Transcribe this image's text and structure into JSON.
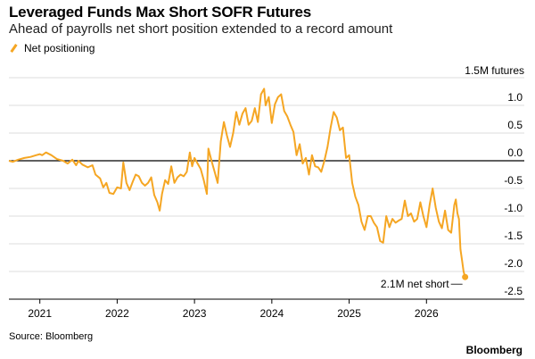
{
  "chart_data": {
    "type": "line",
    "title": "Leveraged Funds Max Short SOFR Futures",
    "subtitle": "Ahead of payrolls net short position extended to a record amount",
    "legend": [
      {
        "name": "Net positioning",
        "color": "#f5a623"
      }
    ],
    "unit_label": "1.5M futures",
    "ylim": [
      -2.5,
      1.5
    ],
    "yticks": [
      1.0,
      0.5,
      0.0,
      -0.5,
      -1.0,
      -1.5,
      -2.0,
      -2.5
    ],
    "ytick_labels": [
      "1.0",
      "0.5",
      "0.0",
      "-0.5",
      "-1.0",
      "-1.5",
      "-2.0",
      "-2.5"
    ],
    "xlim": [
      2020.6,
      2026.85
    ],
    "xticks": [
      2021,
      2022,
      2023,
      2024,
      2025,
      2026
    ],
    "xtick_labels": [
      "2021",
      "2022",
      "2023",
      "2024",
      "2025",
      "2026"
    ],
    "grid": true,
    "series": [
      {
        "name": "Net positioning",
        "color": "#f5a623",
        "x": [
          2020.6,
          2020.65,
          2020.72,
          2020.8,
          2020.88,
          2020.95,
          2021.0,
          2021.03,
          2021.08,
          2021.15,
          2021.22,
          2021.3,
          2021.36,
          2021.42,
          2021.47,
          2021.5,
          2021.55,
          2021.62,
          2021.68,
          2021.72,
          2021.78,
          2021.82,
          2021.86,
          2021.9,
          2021.95,
          2022.0,
          2022.05,
          2022.08,
          2022.12,
          2022.16,
          2022.2,
          2022.24,
          2022.28,
          2022.32,
          2022.36,
          2022.4,
          2022.44,
          2022.48,
          2022.52,
          2022.55,
          2022.58,
          2022.62,
          2022.66,
          2022.7,
          2022.74,
          2022.78,
          2022.82,
          2022.86,
          2022.9,
          2022.94,
          2022.97,
          2023.0,
          2023.04,
          2023.08,
          2023.12,
          2023.16,
          2023.18,
          2023.22,
          2023.26,
          2023.3,
          2023.34,
          2023.38,
          2023.42,
          2023.46,
          2023.5,
          2023.54,
          2023.58,
          2023.62,
          2023.66,
          2023.7,
          2023.74,
          2023.78,
          2023.82,
          2023.86,
          2023.9,
          2023.92,
          2023.96,
          2024.0,
          2024.04,
          2024.08,
          2024.12,
          2024.16,
          2024.2,
          2024.24,
          2024.28,
          2024.32,
          2024.36,
          2024.4,
          2024.44,
          2024.48,
          2024.52,
          2024.56,
          2024.6,
          2024.64,
          2024.68,
          2024.72,
          2024.76,
          2024.8,
          2024.84,
          2024.88,
          2024.92,
          2024.96,
          2025.0,
          2025.04,
          2025.08,
          2025.12,
          2025.16,
          2025.2,
          2025.24,
          2025.28,
          2025.32,
          2025.36,
          2025.4,
          2025.44,
          2025.48,
          2025.52,
          2025.56,
          2025.6,
          2025.64,
          2025.68,
          2025.72,
          2025.76,
          2025.8,
          2025.84,
          2025.88,
          2025.92,
          2025.96,
          2026.0,
          2026.04,
          2026.08,
          2026.12,
          2026.16,
          2026.2,
          2026.24,
          2026.28,
          2026.32,
          2026.36,
          2026.38,
          2026.4,
          2026.42,
          2026.44,
          2026.46,
          2026.48,
          2026.5
        ],
        "y": [
          0.0,
          -0.02,
          0.02,
          0.05,
          0.07,
          0.1,
          0.12,
          0.1,
          0.15,
          0.1,
          0.03,
          0.0,
          -0.05,
          0.02,
          -0.08,
          0.0,
          -0.07,
          -0.12,
          -0.08,
          -0.25,
          -0.32,
          -0.48,
          -0.4,
          -0.58,
          -0.6,
          -0.48,
          -0.5,
          -0.03,
          -0.4,
          -0.53,
          -0.38,
          -0.25,
          -0.28,
          -0.4,
          -0.45,
          -0.4,
          -0.3,
          -0.62,
          -0.75,
          -0.9,
          -0.6,
          -0.35,
          -0.42,
          -0.1,
          -0.4,
          -0.3,
          -0.25,
          -0.28,
          -0.2,
          0.15,
          -0.1,
          0.05,
          -0.05,
          -0.15,
          -0.35,
          -0.6,
          0.22,
          0.0,
          -0.2,
          -0.4,
          0.35,
          0.7,
          0.45,
          0.25,
          0.5,
          0.88,
          0.65,
          0.85,
          0.95,
          0.65,
          0.72,
          0.95,
          0.7,
          1.2,
          1.3,
          1.0,
          1.15,
          0.68,
          1.02,
          1.15,
          1.2,
          0.9,
          0.8,
          0.65,
          0.52,
          0.1,
          0.3,
          -0.05,
          0.05,
          -0.25,
          0.1,
          -0.1,
          -0.12,
          -0.2,
          0.0,
          0.25,
          0.6,
          0.88,
          0.78,
          0.55,
          0.6,
          0.05,
          0.1,
          -0.4,
          -0.65,
          -0.8,
          -1.1,
          -1.25,
          -1.0,
          -1.0,
          -1.12,
          -1.2,
          -1.45,
          -1.48,
          -1.0,
          -1.2,
          -1.05,
          -1.12,
          -1.08,
          -1.05,
          -0.72,
          -1.0,
          -0.95,
          -1.1,
          -1.05,
          -0.75,
          -1.0,
          -1.2,
          -0.8,
          -0.5,
          -0.85,
          -1.1,
          -1.22,
          -0.9,
          -1.25,
          -1.3,
          -0.8,
          -0.7,
          -0.95,
          -1.05,
          -1.6,
          -1.8,
          -2.0,
          -2.1
        ]
      }
    ],
    "annotation": {
      "text": "2.1M net short",
      "x": 2026.5,
      "y": -2.1
    }
  },
  "footer": {
    "source": "Source: Bloomberg",
    "brand": "Bloomberg"
  }
}
